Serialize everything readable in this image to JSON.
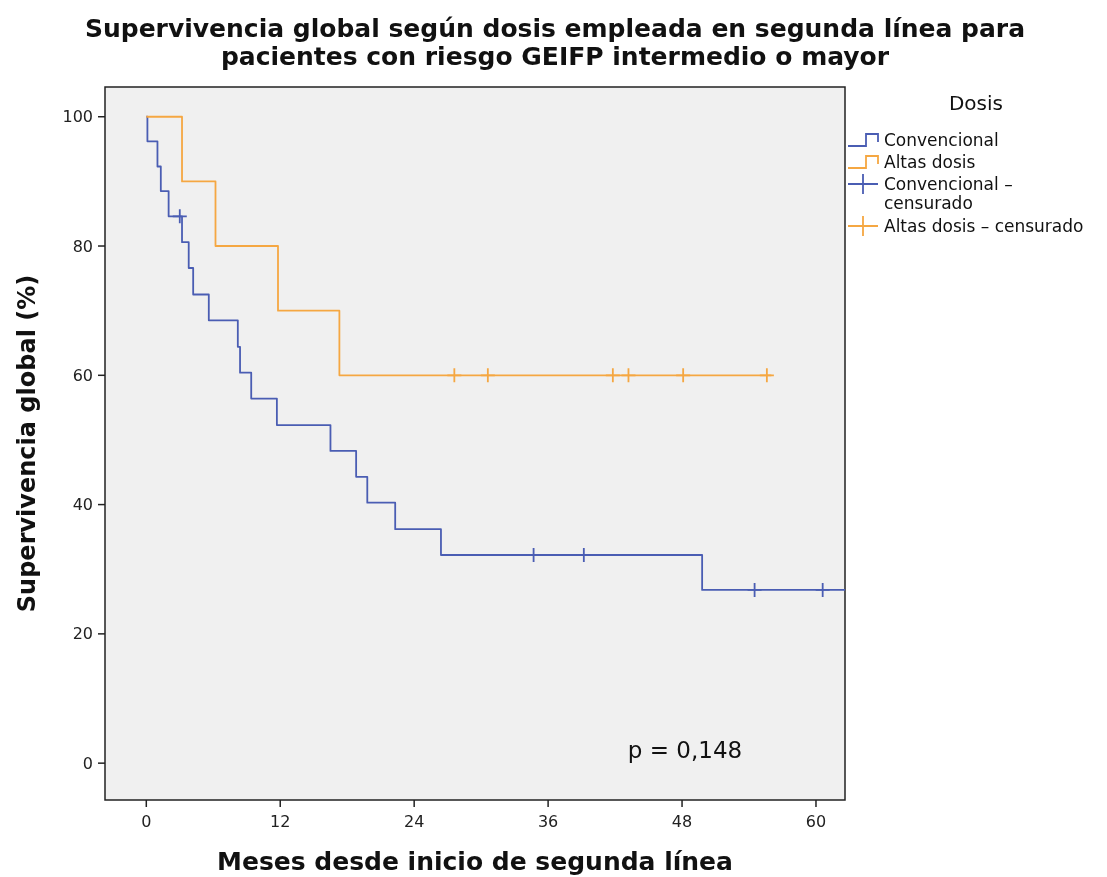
{
  "chart_data": {
    "type": "step",
    "title": "Supervivencia global según dosis empleada en segunda línea para\npacientes con riesgo GEIFP intermedio o mayor",
    "xlabel": "Meses desde inicio de segunda línea",
    "ylabel": "Supervivencia global (%)",
    "legend_title": "Dosis",
    "legend": "right",
    "grid": false,
    "xlim": [
      -3.7,
      62.6
    ],
    "ylim": [
      -5.7,
      104.6
    ],
    "xticks": [
      0,
      12,
      24,
      36,
      48,
      60
    ],
    "yticks": [
      0,
      20,
      40,
      60,
      80,
      100
    ],
    "annotations": [
      "p = 0,148"
    ],
    "series": [
      {
        "name": "Convencional",
        "type": "step",
        "color": "#4a5db3",
        "x": [
          0,
          0.1,
          1.0,
          1.3,
          2.0,
          3.2,
          3.8,
          4.2,
          5.6,
          8.2,
          8.4,
          9.4,
          11.7,
          16.5,
          18.8,
          19.8,
          22.3,
          26.4,
          49.8,
          62.6
        ],
        "values": [
          100,
          96.2,
          92.3,
          88.5,
          84.6,
          80.6,
          76.6,
          72.5,
          68.5,
          64.4,
          60.4,
          56.4,
          52.3,
          48.3,
          44.3,
          40.3,
          36.2,
          32.2,
          26.8,
          26.8
        ]
      },
      {
        "name": "Altas dosis",
        "type": "step",
        "color": "#f5a742",
        "x": [
          0,
          3.2,
          6.2,
          11.8,
          17.3,
          56.0
        ],
        "values": [
          100,
          90,
          80,
          70,
          60,
          60
        ]
      },
      {
        "name": "Convencional – censurado",
        "type": "scatter",
        "marker": "cross",
        "color": "#4a5db3",
        "x": [
          3.0,
          34.7,
          39.2,
          54.5,
          60.6
        ],
        "values": [
          84.6,
          32.2,
          32.2,
          26.8,
          26.8
        ]
      },
      {
        "name": "Altas dosis – censurado",
        "type": "scatter",
        "marker": "cross",
        "color": "#f5a742",
        "x": [
          27.6,
          30.6,
          41.8,
          43.2,
          48.1,
          55.6
        ],
        "values": [
          60,
          60,
          60,
          60,
          60,
          60
        ]
      }
    ]
  }
}
